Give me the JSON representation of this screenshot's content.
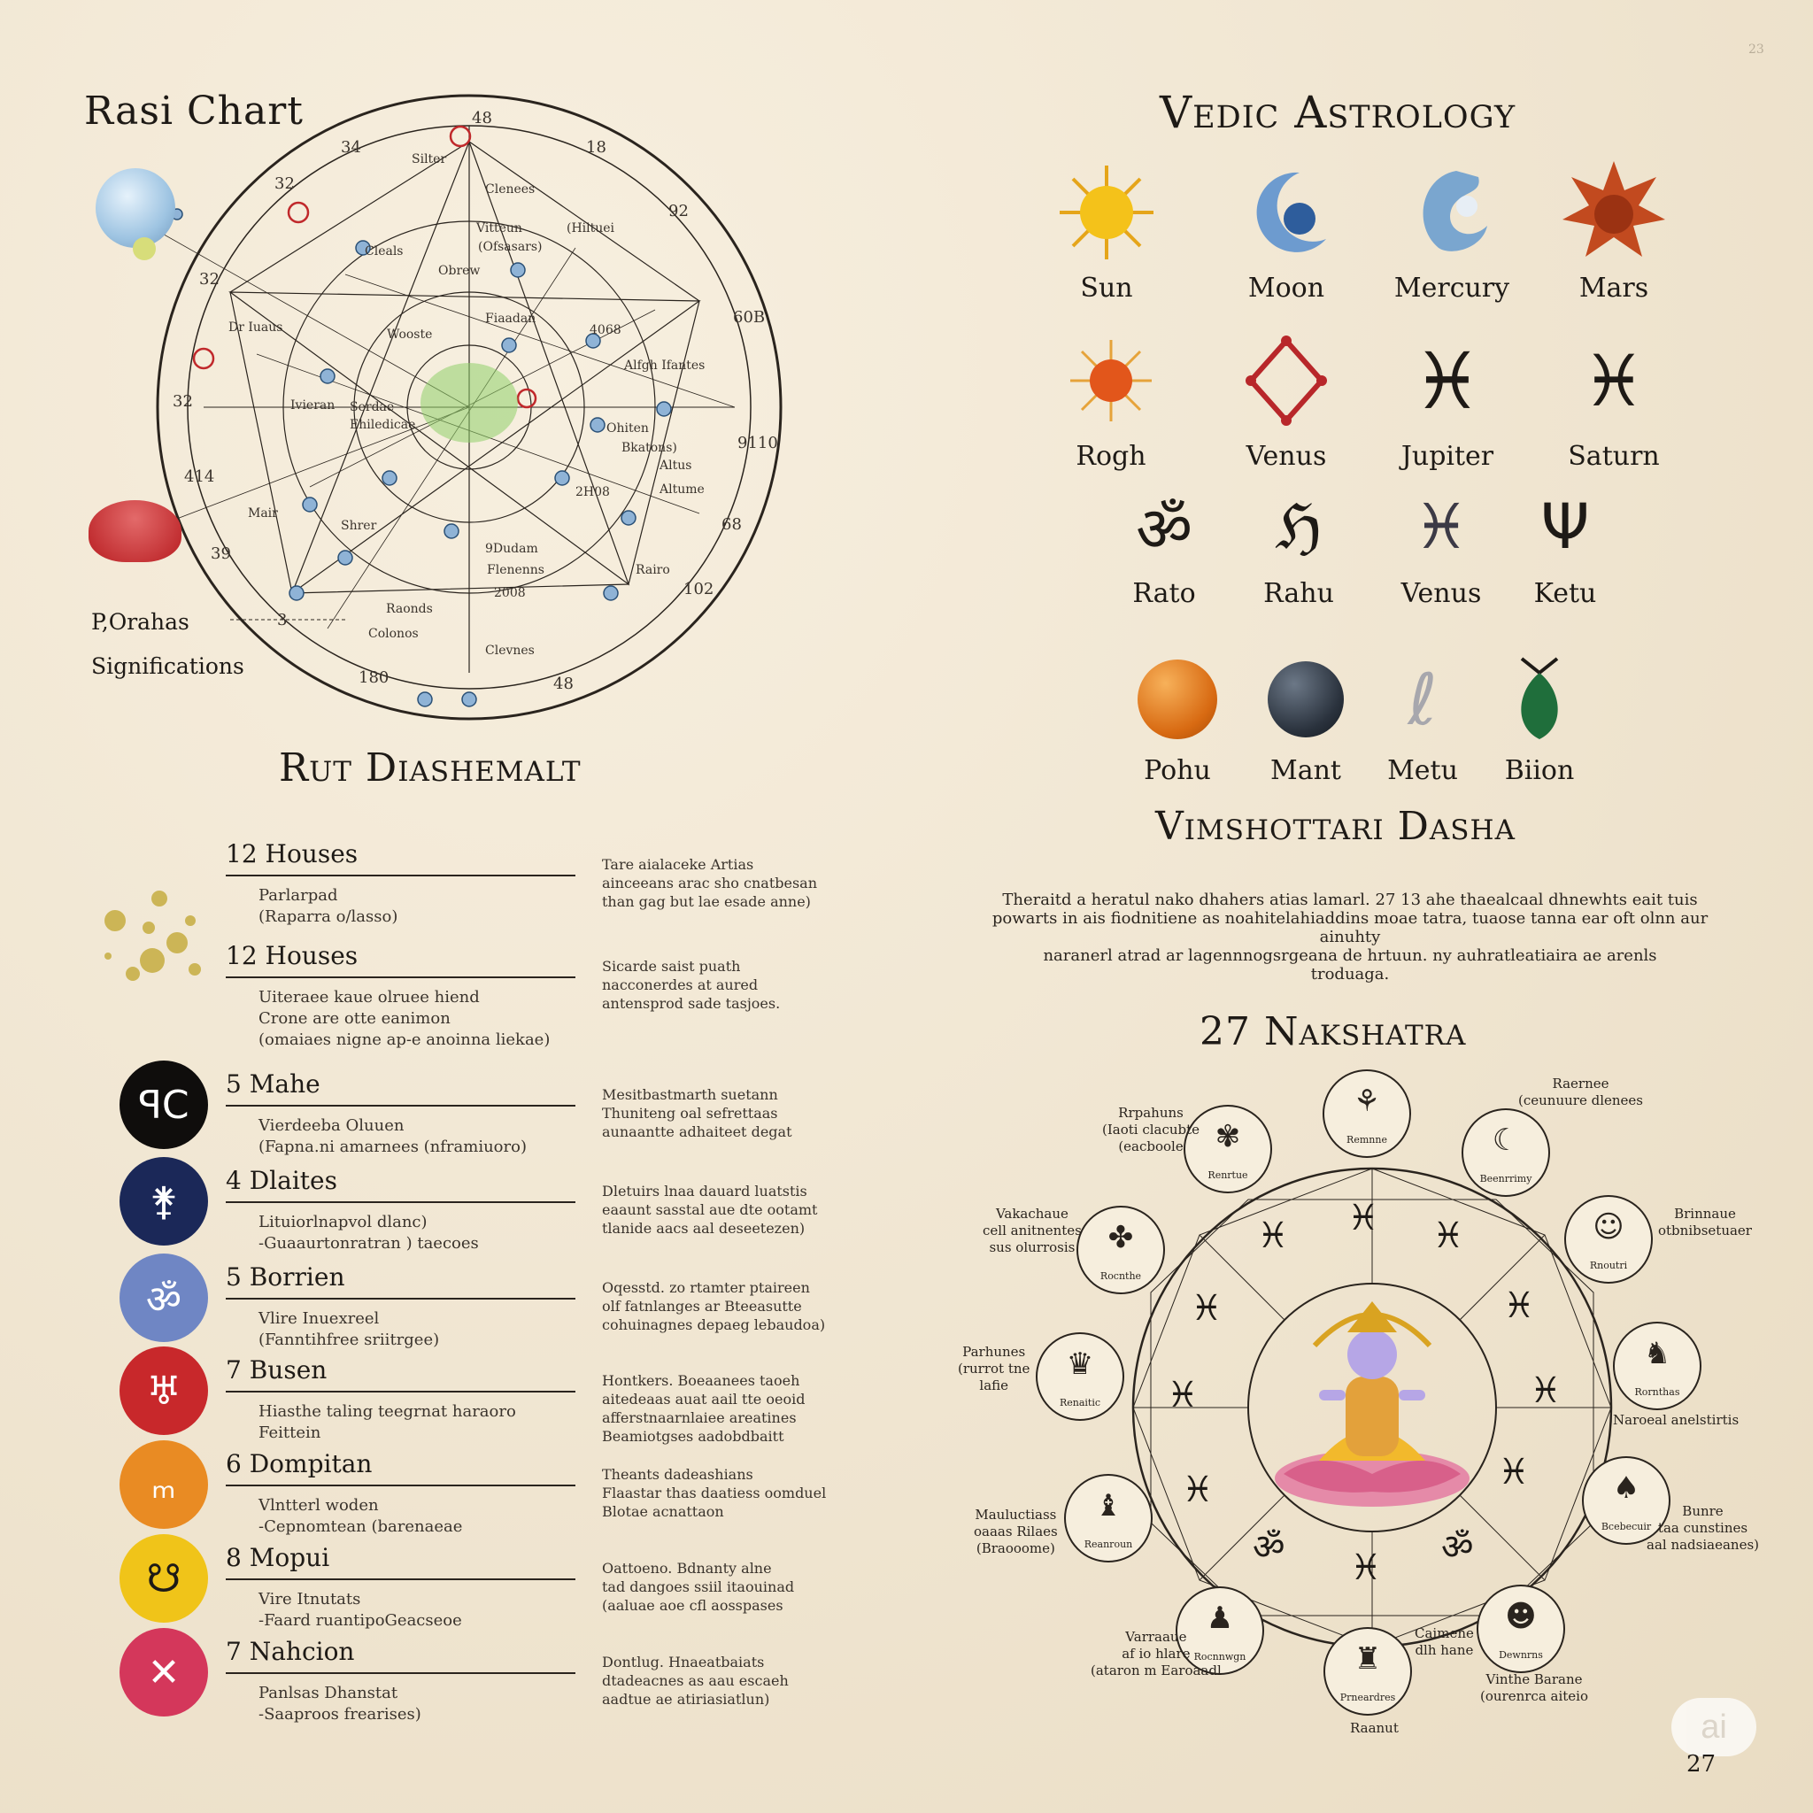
{
  "left_page": {
    "chart_title": "Rasi Chart",
    "chart_numbers": [
      "48",
      "18",
      "34",
      "32",
      "92",
      "32",
      "60B",
      "32",
      "9110",
      "414",
      "68",
      "39",
      "102",
      "180",
      "48",
      "3"
    ],
    "chart_labels": [
      "Silter",
      "Clenees",
      "Vitteun",
      "(Ofsasars)",
      "(Hiltuei",
      "Cleals",
      "Obrew",
      "Dr Iuaus",
      "Fiaadan",
      "Wooste",
      "4068",
      "Alfgh Ifantes",
      "Ivieran",
      "Serdae",
      "Ehiledicae",
      "Ohiten",
      "Bkatons)",
      "Altus",
      "Altume",
      "2H08",
      "Mair",
      "Shrer",
      "9Dudam",
      "Flenenns",
      "2008",
      "Rairo",
      "Raonds",
      "Colonos",
      "Clevnes"
    ],
    "side_label_1": "P,Orahas",
    "side_label_2": "Significations",
    "section_title": "Rut Diashemalt",
    "houses": [
      {
        "head": "12 Houses",
        "sub1": "Parlarpad",
        "sub2": "(Raparra o/lasso)",
        "desc1": "Tare aialaceke Artias",
        "desc2": "ainceeans arac sho cnatbesan",
        "desc3": "than gag but lae esade anne)"
      },
      {
        "head": "12 Houses",
        "sub1": "Uiteraee kaue olruee hiend",
        "sub2": "Crone are otte eanimon",
        "sub3": "(omaiaes nigne ap-e anoinna liekae)",
        "desc1": "Sicarde saist puath",
        "desc2": "nacconerdes at aured",
        "desc3": "antensprod sade tasjoes."
      },
      {
        "head": "5 Mahe",
        "sub1": "Vierdeeba Oluuen",
        "sub2": "(Fapna.ni amarnees (nframiuoro)",
        "desc1": "Mesitbastmarth suetann",
        "desc2": "Thuniteng oal sefrettaas",
        "desc3": "aunaantte adhaiteet degat",
        "symbol": "ꟼC",
        "color": "#0f0d0c"
      },
      {
        "head": "4 Dlaites",
        "sub1": "Lituiorlnapvol dlanc)",
        "sub2": "-Guaaurtonratran ) taecoes",
        "desc1": "Dletuirs lnaa dauard luatstis",
        "desc2": "eaaunt sasstal aue dte ootamt",
        "desc3": "tlanide aacs aal deseetezen)",
        "symbol": "⚵",
        "color": "#1b2858"
      },
      {
        "head": "5 Borrien",
        "sub1": "Vlire Inuexreel",
        "sub2": "(Fanntihfree sriitrgee)",
        "desc1": "Oqesstd. zo rtamter ptaireen",
        "desc2": "olf fatnlanges ar Bteeasutte",
        "desc3": "cohuinagnes depaeg lebaudoa)",
        "symbol": "ॐ",
        "color": "#6f86c4"
      },
      {
        "head": "7 Busen",
        "sub1": "Hiasthe taling teegrnat haraoro",
        "sub2": "Feittein",
        "desc1": "Hontkers. Boeaanees taoeh",
        "desc2": "aitedeaas auat aail tte oeoid",
        "desc3": "afferstnaarnlaiee areatines",
        "desc4": "Beamiotgses aadobdbaitt",
        "symbol": "♅",
        "color": "#c8282b"
      },
      {
        "head": "6 Dompitan",
        "sub1": "Vlntterl woden",
        "sub2": "-Cepnomtean (barenaeae",
        "desc1": "Theants dadeashians",
        "desc2": "Flaastar thas daatiess oomduel",
        "desc3": "Blotae acnattaon",
        "symbol": "ₘ",
        "color": "#e98b23"
      },
      {
        "head": "8 Mopui",
        "sub1": "Vire Itnutats",
        "sub2": "-Faard ruantipoGeacseoe",
        "desc1": "Oattoeno. Bdnanty alne",
        "desc2": "tad dangoes ssiil itaouinad",
        "desc3": "(aaluae aoe cfl aosspases",
        "symbol": "☋",
        "color": "#f0c419"
      },
      {
        "head": "7 Nahcion",
        "sub1": "Panlsas Dhanstat",
        "sub2": "-Saaproos frearises)",
        "desc1": "Dontlug. Hnaeatbaiats",
        "desc2": "dtadeacnes as aau escaeh",
        "desc3": "aadtue ae atiriasiatlun)",
        "symbol": "✕",
        "color": "#d4375b"
      }
    ]
  },
  "right_page": {
    "corner_mark": "23",
    "title": "Vedic Astrology",
    "planets": [
      {
        "name": "Sun",
        "icon": "sun-icon"
      },
      {
        "name": "Moon",
        "icon": "moon-icon"
      },
      {
        "name": "Mercury",
        "icon": "mercury-icon"
      },
      {
        "name": "Mars",
        "icon": "mars-icon"
      },
      {
        "name": "Rogh",
        "icon": "rogh-icon"
      },
      {
        "name": "Venus",
        "icon": "venus-icon"
      },
      {
        "name": "Jupiter",
        "icon": "jupiter-icon"
      },
      {
        "name": "Saturn",
        "icon": "saturn-icon"
      },
      {
        "name": "Rato",
        "icon": "om-icon"
      },
      {
        "name": "Rahu",
        "icon": "rahu-icon"
      },
      {
        "name": "Venus",
        "icon": "venus-glyph-icon"
      },
      {
        "name": "Ketu",
        "icon": "trident-icon"
      },
      {
        "name": "Pohu",
        "icon": "orange-orb-icon"
      },
      {
        "name": "Mant",
        "icon": "dark-orb-icon"
      },
      {
        "name": "Metu",
        "icon": "silver-snake-icon"
      },
      {
        "name": "Biion",
        "icon": "green-vase-icon"
      }
    ],
    "dasha_title": "Vimshottari Dasha",
    "dasha_text1": "Theraitd a heratul nako dhahers atias lamarl. 27 13 ahe thaealcaal dhnewhts eait tuis",
    "dasha_text2": "powarts in ais fiodnitiene as noahitelahiaddins moae tatra, tuaose tanna ear oft olnn aur ainuhty",
    "dasha_text3": "naranerl atrad ar lagennnogsrgeana de hrtuun. ny auhratleatiaira ae arenls",
    "dasha_text4": "troduaga.",
    "nakshatra_title": "27 Nakshatra",
    "wheel_glyphs": [
      "♓",
      "♓",
      "♓",
      "♓",
      "♓",
      "♓",
      "♓",
      "♓",
      "ॐ",
      "♓",
      "♓",
      "ॐ"
    ],
    "medallions": [
      {
        "label": "Remnne"
      },
      {
        "label": "Renrtue"
      },
      {
        "label": "Beenrrimy"
      },
      {
        "label": "Rnoutri"
      },
      {
        "label": "Rornthas"
      },
      {
        "label": "Renaitic"
      },
      {
        "label": "Dewnrns"
      },
      {
        "label": "Prneardres"
      },
      {
        "label": "Rocnnwgn"
      },
      {
        "label": "Reanroun"
      },
      {
        "label": "Bcebecuir"
      },
      {
        "label": "Rocnthe"
      }
    ],
    "outer_labels": [
      "Raernee",
      "(ceunuure dlenees",
      "Rrpahuns",
      "(Iaoti clacubte",
      "(eacboole",
      "Vakachaue",
      "cell anitnentes",
      "sus olurrosis",
      "Brinnaue",
      "otbnibsetuaer",
      "Parhunes",
      "(rurrot tne",
      "lafie",
      "Naroeal anelstirtis",
      "Mauluctiass",
      "oaaas Rilaes",
      "(Braooome)",
      "Bunre",
      "taa cunstines",
      "aal nadsiaeanes)",
      "Varraaue",
      "af io hlare",
      "(ataron m Earoaadl",
      "Caimene",
      "dlh hane",
      "Vinthe Barane",
      "(ourenrca aiteio",
      "Raanut"
    ],
    "page_number": "27",
    "watermark": "ai"
  }
}
